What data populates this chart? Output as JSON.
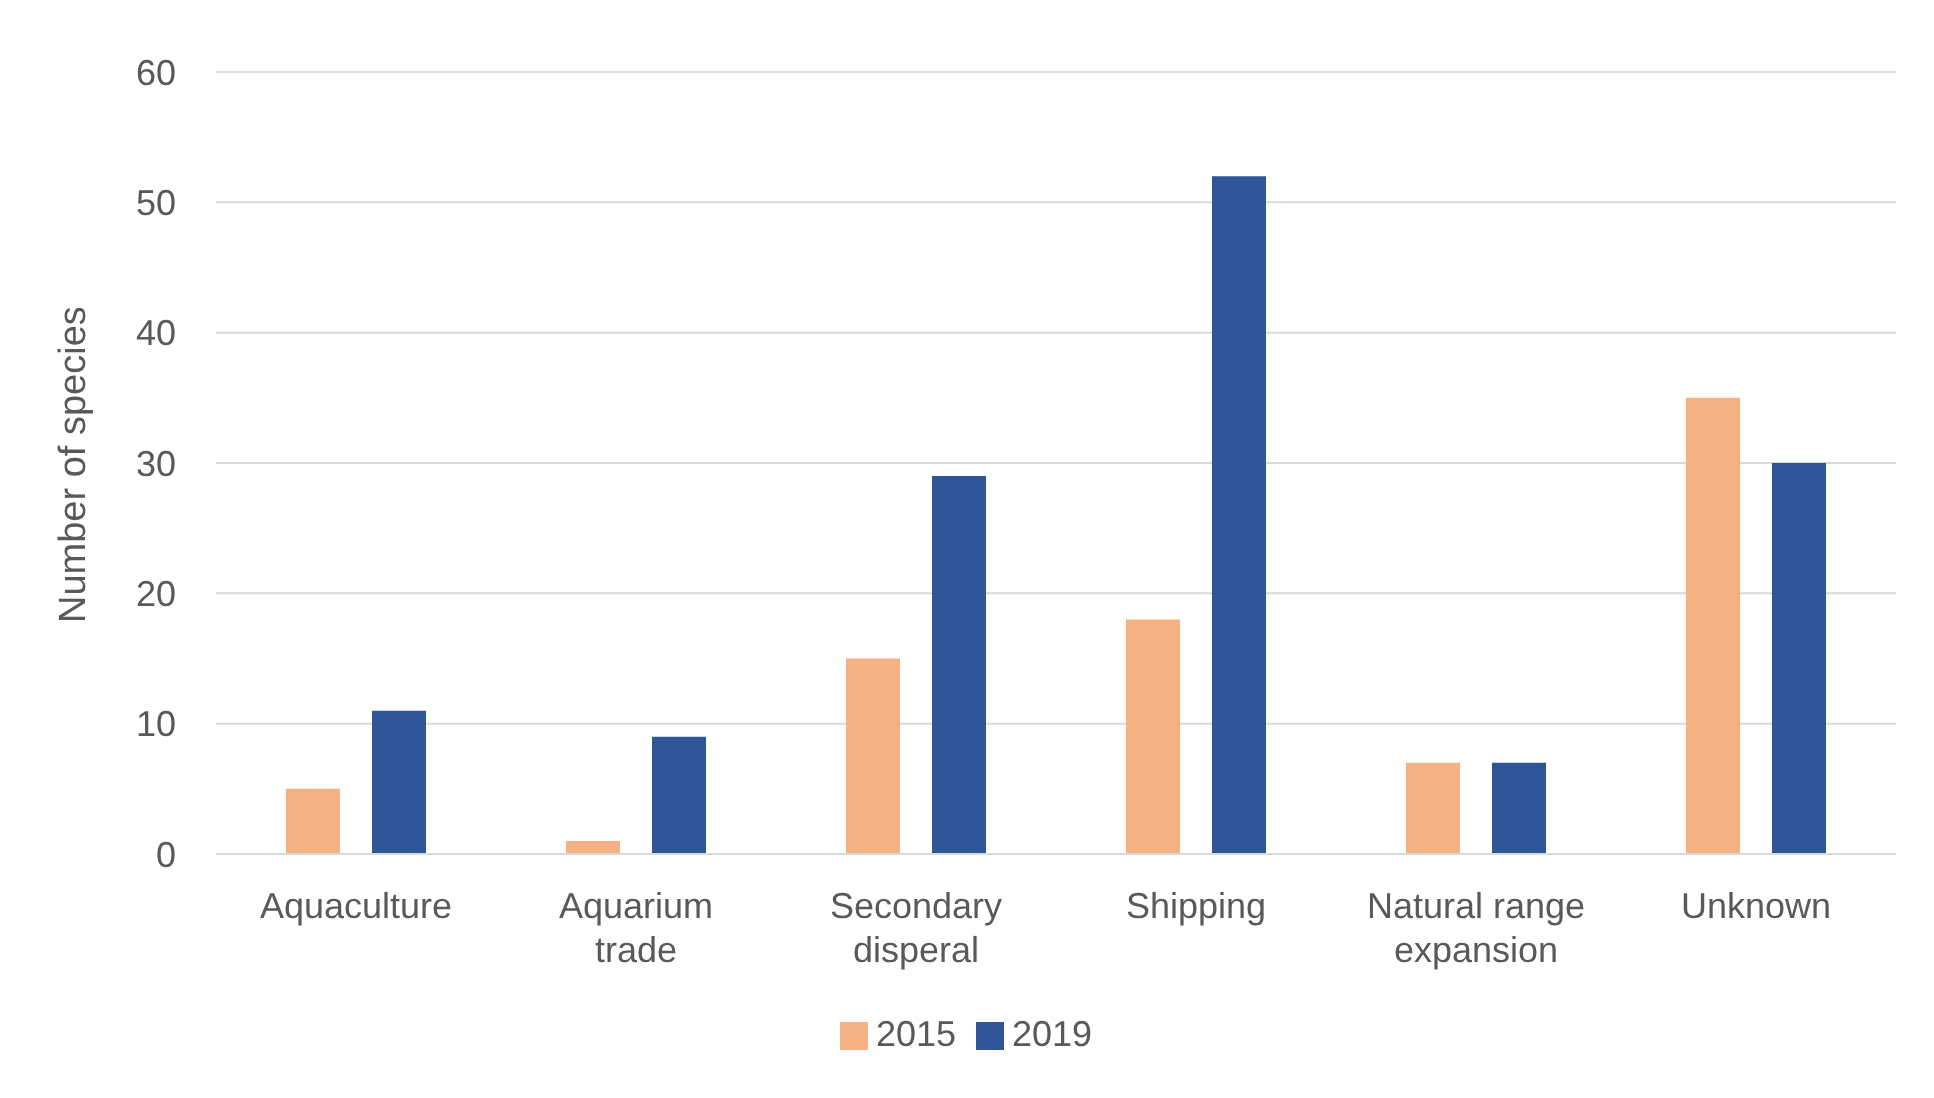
{
  "chart_data": {
    "type": "bar",
    "ylabel": "Number of species",
    "categories": [
      "Aquaculture",
      "Aquarium trade",
      "Secondary disperal",
      "Shipping",
      "Natural range expansion",
      "Unknown"
    ],
    "series": [
      {
        "name": "2015",
        "color": "#f4b183",
        "values": [
          5,
          1,
          15,
          18,
          7,
          35
        ]
      },
      {
        "name": "2019",
        "color": "#2f5597",
        "values": [
          11,
          9,
          29,
          52,
          7,
          30
        ]
      }
    ],
    "ylim": [
      0,
      60
    ],
    "yticks": [
      0,
      10,
      20,
      30,
      40,
      50,
      60
    ],
    "grid": "y",
    "legend": "bottom"
  }
}
